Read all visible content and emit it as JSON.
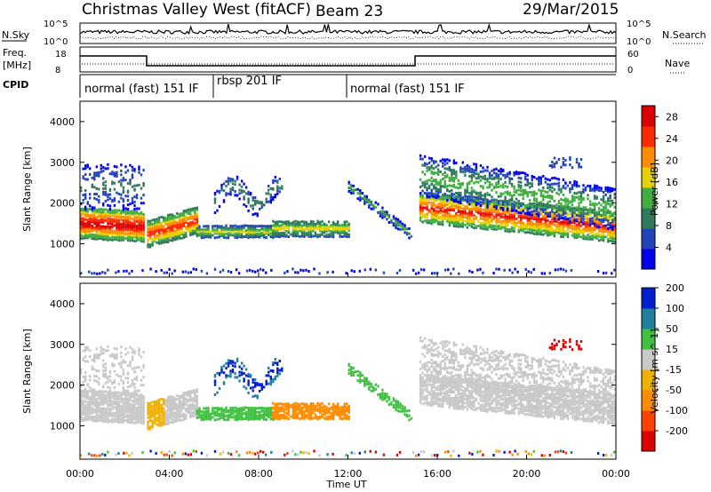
{
  "header": {
    "station": "Christmas Valley West (fitACF)",
    "beam": "Beam 23",
    "date": "29/Mar/2015"
  },
  "strip_labels": {
    "nsky": "N.Sky",
    "nsearch": "N.Search",
    "freq": "Freq.",
    "freq_unit": "[MHz]",
    "nave": "Nave",
    "cpid": "CPID"
  },
  "strip_ticks": {
    "nsky_top": "10^5",
    "nsky_bottom": "10^0",
    "freq_top": "18",
    "freq_bottom": "8",
    "nave_top": "60",
    "nave_bottom": "0"
  },
  "modes": [
    {
      "label": "normal (fast) 151 IF",
      "start_hour": 0
    },
    {
      "label": "rbsp 201 IF",
      "start_hour": 6.0
    },
    {
      "label": "normal (fast) 151 IF",
      "start_hour": 12.0
    }
  ],
  "xaxis": {
    "label": "Time UT",
    "ticks": [
      "00:00",
      "04:00",
      "08:00",
      "12:00",
      "16:00",
      "20:00",
      "00:00"
    ],
    "range_hours": [
      0,
      24
    ]
  },
  "chart_data": [
    {
      "type": "heatmap",
      "title": "Power",
      "ylabel": "Slant Range [km]",
      "yticks": [
        1000,
        2000,
        3000,
        4000
      ],
      "ylim": [
        180,
        4500
      ],
      "colorbar": {
        "label": "Power [dB]",
        "ticks": [
          4,
          8,
          12,
          16,
          20,
          24,
          28
        ],
        "range": [
          0,
          30
        ],
        "colors": [
          "#0000ee",
          "#2244bb",
          "#2f7a5a",
          "#3fae3f",
          "#e8d000",
          "#ff8c00",
          "#ff2a00",
          "#dd0000"
        ]
      },
      "description_bands": [
        {
          "t": [
            0.0,
            2.9
          ],
          "range_km": [
            1150,
            1900
          ],
          "peak_db": 28
        },
        {
          "t": [
            3.0,
            5.0
          ],
          "range_km": [
            950,
            1800
          ],
          "peak_db": 24
        },
        {
          "t": [
            5.0,
            12.0
          ],
          "range_km": [
            1150,
            1650
          ],
          "peak_db": 16
        },
        {
          "t": [
            15.0,
            24.0
          ],
          "range_km": [
            1100,
            3200
          ],
          "peak_db": 24
        }
      ]
    },
    {
      "type": "heatmap",
      "title": "Velocity",
      "ylabel": "Slant Range [km]",
      "yticks": [
        1000,
        2000,
        3000,
        4000
      ],
      "ylim": [
        180,
        4500
      ],
      "colorbar": {
        "label": "Velocity [m s^-1]",
        "ticks": [
          -200,
          -100,
          -50,
          -15,
          15,
          50,
          100,
          200
        ],
        "range": [
          -250,
          250
        ],
        "colors": [
          "#dd0000",
          "#ff4000",
          "#ff8c00",
          "#f0b000",
          "#c8c8c8",
          "#40c040",
          "#2080a0",
          "#0020d0"
        ]
      }
    }
  ]
}
